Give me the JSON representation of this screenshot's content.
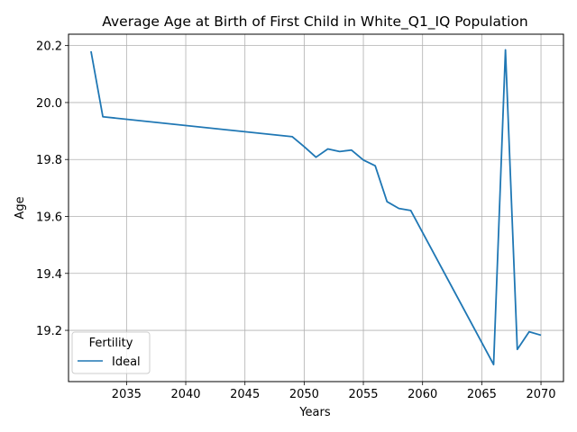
{
  "chart_data": {
    "type": "line",
    "title": "Average Age at Birth of First Child in White_Q1_IQ Population",
    "xlabel": "Years",
    "ylabel": "Age",
    "xlim": [
      2030.1,
      2071.9
    ],
    "ylim": [
      19.02,
      20.24
    ],
    "x_ticks": [
      2035,
      2040,
      2045,
      2050,
      2055,
      2060,
      2065,
      2070
    ],
    "y_ticks": [
      19.2,
      19.4,
      19.6,
      19.8,
      20.0,
      20.2
    ],
    "y_tick_labels": [
      "19.2",
      "19.4",
      "19.6",
      "19.8",
      "20.0",
      "20.2"
    ],
    "grid": true,
    "legend": {
      "title": "Fertility",
      "position": "lower-left"
    },
    "series": [
      {
        "name": "Ideal",
        "color": "#1f77b4",
        "x": [
          2032,
          2033,
          2049,
          2050,
          2051,
          2052,
          2053,
          2054,
          2055,
          2056,
          2057,
          2058,
          2059,
          2066,
          2067,
          2068,
          2069,
          2070
        ],
        "values": [
          20.18,
          19.95,
          19.88,
          19.845,
          19.808,
          19.837,
          19.828,
          19.833,
          19.798,
          19.778,
          19.652,
          19.628,
          19.621,
          19.08,
          20.185,
          19.133,
          19.195,
          19.183
        ]
      }
    ]
  }
}
